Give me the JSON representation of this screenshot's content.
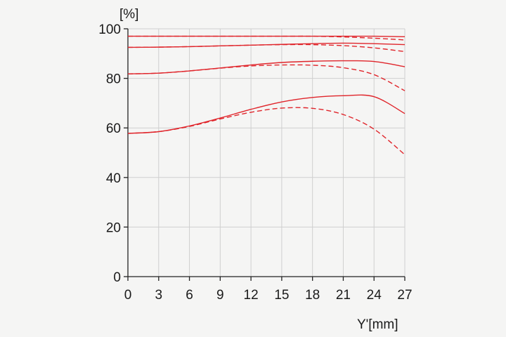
{
  "chart_data": {
    "type": "line",
    "title": "",
    "xlabel": "Y'[mm]",
    "ylabel": "[%]",
    "xlim": [
      0,
      27
    ],
    "ylim": [
      0,
      100
    ],
    "x_ticks": [
      0,
      3,
      6,
      9,
      12,
      15,
      18,
      21,
      24,
      27
    ],
    "y_ticks": [
      0,
      20,
      40,
      60,
      80,
      100
    ],
    "grid": true,
    "legend": "none",
    "line_color": "#e0252b",
    "series": [
      {
        "style": "solid",
        "x": [
          0,
          3,
          6,
          9,
          12,
          15,
          18,
          21,
          24,
          27
        ],
        "y": [
          97.0,
          97.0,
          97.0,
          97.0,
          97.0,
          97.0,
          97.0,
          97.0,
          97.0,
          96.8
        ]
      },
      {
        "style": "dashed",
        "x": [
          0,
          3,
          6,
          9,
          12,
          15,
          18,
          21,
          24,
          27
        ],
        "y": [
          97.0,
          97.0,
          97.0,
          97.0,
          97.0,
          97.0,
          97.0,
          96.7,
          96.2,
          95.5
        ]
      },
      {
        "style": "solid",
        "x": [
          0,
          3,
          6,
          9,
          12,
          15,
          18,
          21,
          24,
          27
        ],
        "y": [
          92.5,
          92.6,
          92.8,
          93.1,
          93.4,
          93.7,
          94.0,
          94.2,
          94.0,
          93.6
        ]
      },
      {
        "style": "dashed",
        "x": [
          0,
          3,
          6,
          9,
          12,
          15,
          18,
          21,
          24,
          27
        ],
        "y": [
          92.5,
          92.6,
          92.8,
          93.1,
          93.4,
          93.6,
          93.6,
          93.2,
          92.3,
          90.8
        ]
      },
      {
        "style": "solid",
        "x": [
          0,
          3,
          6,
          9,
          12,
          15,
          18,
          21,
          24,
          27
        ],
        "y": [
          81.8,
          82.1,
          83.0,
          84.2,
          85.4,
          86.4,
          86.9,
          87.1,
          86.8,
          84.7
        ]
      },
      {
        "style": "dashed",
        "x": [
          0,
          3,
          6,
          9,
          12,
          15,
          18,
          21,
          24,
          27
        ],
        "y": [
          81.8,
          82.1,
          83.0,
          84.1,
          85.0,
          85.4,
          85.3,
          84.3,
          81.5,
          75.0
        ]
      },
      {
        "style": "solid",
        "x": [
          0,
          3,
          6,
          9,
          12,
          15,
          18,
          21,
          24,
          27
        ],
        "y": [
          57.8,
          58.5,
          60.8,
          64.0,
          67.5,
          70.5,
          72.3,
          73.0,
          72.6,
          65.8
        ]
      },
      {
        "style": "dashed",
        "x": [
          0,
          3,
          6,
          9,
          12,
          15,
          18,
          21,
          24,
          27
        ],
        "y": [
          57.8,
          58.5,
          60.6,
          63.6,
          66.3,
          68.0,
          67.9,
          65.4,
          59.5,
          49.2
        ]
      }
    ]
  }
}
